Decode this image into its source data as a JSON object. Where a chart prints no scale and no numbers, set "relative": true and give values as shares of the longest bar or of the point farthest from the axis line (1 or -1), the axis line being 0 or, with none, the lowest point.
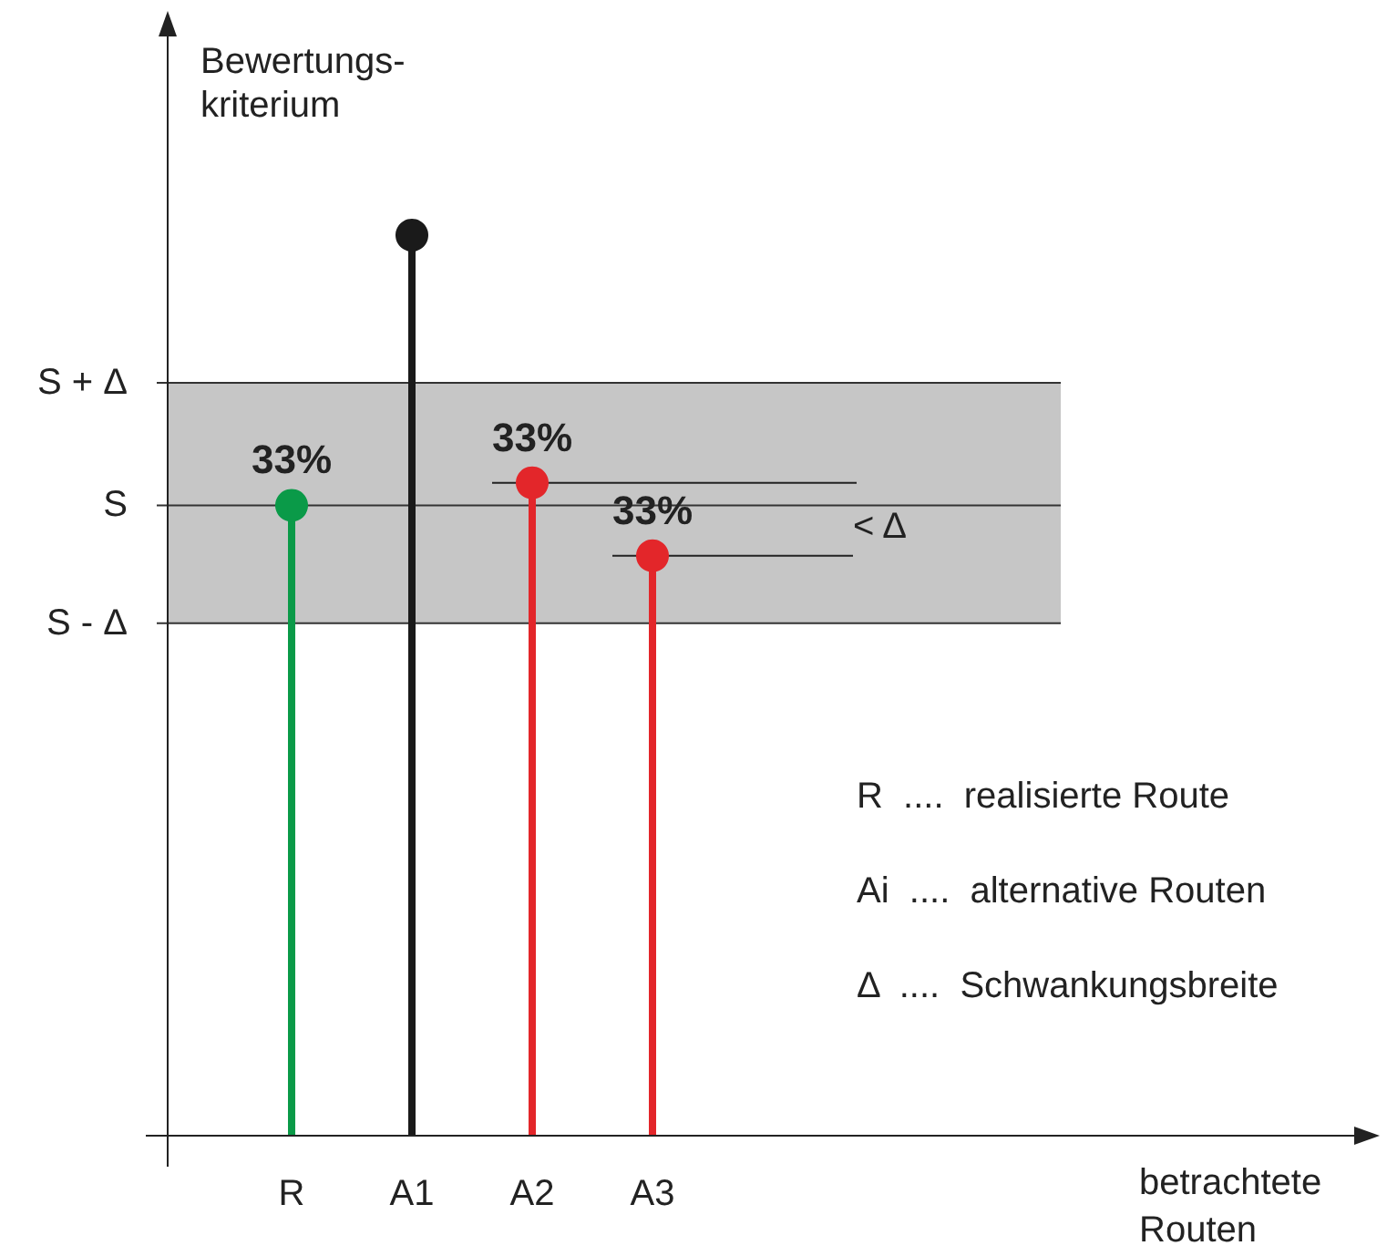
{
  "chart_data": {
    "type": "lollipop",
    "ylabel": "Bewertungs-\nkriterium",
    "categories": [
      "R",
      "A1",
      "A2",
      "A3"
    ],
    "values": [
      0.7,
      1,
      0.725,
      0.644
    ],
    "colors": [
      "#0a9a48",
      "#1a1a1a",
      "#e3262a",
      "#e3262a"
    ],
    "relative": true,
    "marker": "circle",
    "bands": [
      {
        "axis": "y",
        "from": 0.569,
        "to": 0.836,
        "color": "#c6c6c6"
      }
    ],
    "ref_lines": [
      {
        "axis": "y",
        "value": 0.836,
        "label": "S + Δ"
      },
      {
        "axis": "y",
        "value": 0.7,
        "label": "S"
      },
      {
        "axis": "y",
        "value": 0.569,
        "label": "S - Δ"
      }
    ],
    "annotations": [
      {
        "text": "33%",
        "x": "R",
        "y": 0.7
      },
      {
        "text": "33%",
        "x": "A2",
        "y": 0.725
      },
      {
        "text": "33%",
        "x": "A3",
        "y": 0.644
      },
      "< Δ",
      "R  ....  realisierte Route",
      "Ai  ....  alternative Routen",
      "Δ  ....  Schwankungsbreite",
      "betrachtete\nRouten"
    ]
  }
}
